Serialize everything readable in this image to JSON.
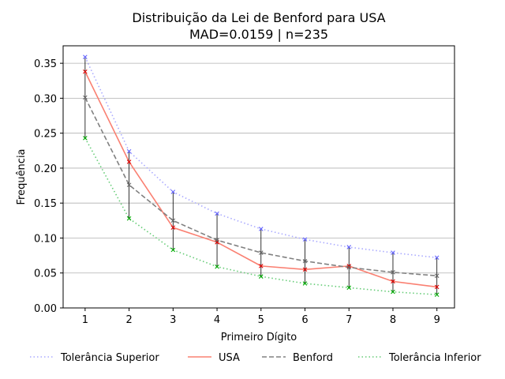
{
  "chart_data": {
    "type": "line",
    "title_line1": "Distribuição da Lei de Benford para USA",
    "title_line2": "MAD=0.0159 | n=235",
    "xlabel": "Primeiro Dígito",
    "ylabel": "Frequência",
    "x": [
      1,
      2,
      3,
      4,
      5,
      6,
      7,
      8,
      9
    ],
    "xlim": [
      0.5,
      9.4
    ],
    "ylim": [
      0,
      0.375
    ],
    "yticks": [
      0.0,
      0.05,
      0.1,
      0.15,
      0.2,
      0.25,
      0.3,
      0.35
    ],
    "ytick_labels": [
      "0.00",
      "0.05",
      "0.10",
      "0.15",
      "0.20",
      "0.25",
      "0.30",
      "0.35"
    ],
    "xtick_labels": [
      "1",
      "2",
      "3",
      "4",
      "5",
      "6",
      "7",
      "8",
      "9"
    ],
    "grid": "horizontal",
    "legend_position": "bottom",
    "series": [
      {
        "name": "Tolerância Superior",
        "color": "#aaaaff",
        "dash": "dotted",
        "values": [
          0.359,
          0.224,
          0.166,
          0.135,
          0.113,
          0.098,
          0.087,
          0.079,
          0.072
        ]
      },
      {
        "name": "USA",
        "color": "#fa8072",
        "dash": "solid",
        "values": [
          0.338,
          0.209,
          0.115,
          0.094,
          0.06,
          0.055,
          0.06,
          0.038,
          0.03
        ]
      },
      {
        "name": "Benford",
        "color": "#808080",
        "dash": "dashed",
        "values": [
          0.301,
          0.176,
          0.125,
          0.097,
          0.079,
          0.067,
          0.058,
          0.051,
          0.046
        ]
      },
      {
        "name": "Tolerância Inferior",
        "color": "#66cc77",
        "dash": "dotted",
        "values": [
          0.243,
          0.128,
          0.083,
          0.059,
          0.045,
          0.035,
          0.029,
          0.023,
          0.019
        ]
      }
    ],
    "marker_colors": {
      "Tolerância Superior": "#6666ff",
      "USA": "#dd0000",
      "Benford": "#666666",
      "Tolerância Inferior": "#00aa00"
    }
  }
}
